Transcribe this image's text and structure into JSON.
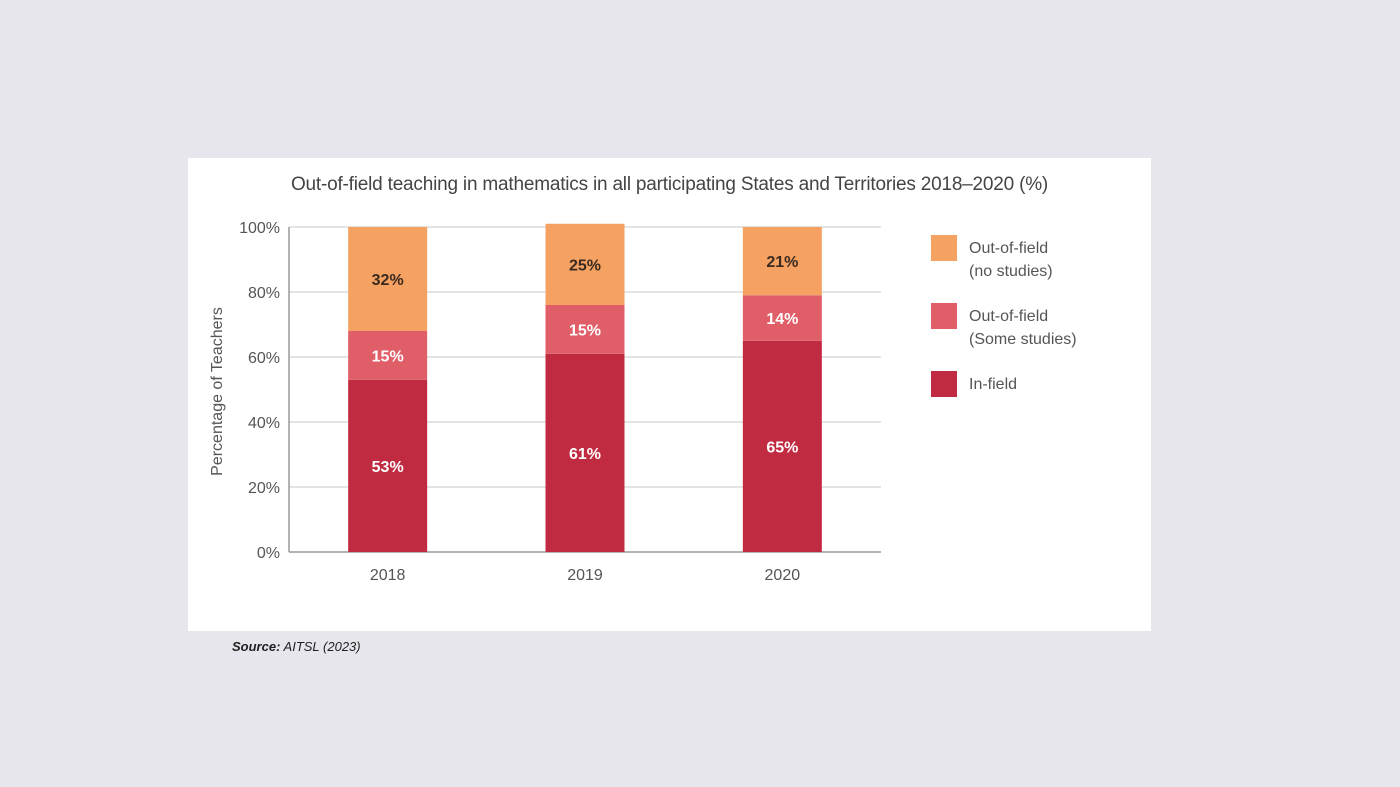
{
  "chart_data": {
    "type": "bar",
    "stacked": true,
    "title": "Out-of-field teaching in mathematics in all participating States and Territories 2018–2020 (%)",
    "xlabel": "",
    "ylabel": "Percentage of Teachers",
    "categories": [
      "2018",
      "2019",
      "2020"
    ],
    "ylim": [
      0,
      100
    ],
    "yticks": [
      0,
      20,
      40,
      60,
      80,
      100
    ],
    "ytick_labels": [
      "0%",
      "20%",
      "40%",
      "60%",
      "80%",
      "100%"
    ],
    "grid": true,
    "legend_position": "right",
    "series": [
      {
        "name": "In-field",
        "color": "#c12b41",
        "label_color": "#ffffff",
        "values": [
          53,
          61,
          65
        ],
        "labels": [
          "53%",
          "61%",
          "65%"
        ]
      },
      {
        "name": "Out-of-field (Some studies)",
        "legend_lines": [
          "Out-of-field",
          "(Some studies)"
        ],
        "color": "#e05e68",
        "label_color": "#ffffff",
        "values": [
          15,
          15,
          14
        ],
        "labels": [
          "15%",
          "15%",
          "14%"
        ]
      },
      {
        "name": "Out-of-field (no studies)",
        "legend_lines": [
          "Out-of-field",
          "(no studies)"
        ],
        "color": "#f4a162",
        "label_color": "#3a2a20",
        "values": [
          32,
          25,
          21
        ],
        "labels": [
          "32%",
          "25%",
          "21%"
        ]
      }
    ]
  },
  "source": {
    "prefix": "Source:",
    "text": " AITSL (2023)"
  }
}
